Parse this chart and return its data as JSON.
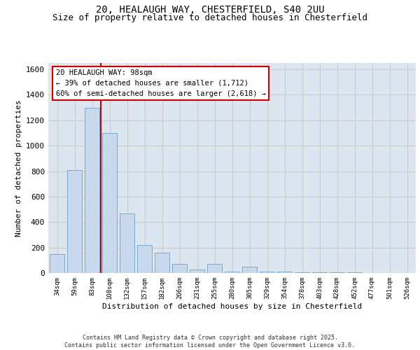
{
  "title_line1": "20, HEALAUGH WAY, CHESTERFIELD, S40 2UU",
  "title_line2": "Size of property relative to detached houses in Chesterfield",
  "xlabel": "Distribution of detached houses by size in Chesterfield",
  "ylabel": "Number of detached properties",
  "categories": [
    "34sqm",
    "59sqm",
    "83sqm",
    "108sqm",
    "132sqm",
    "157sqm",
    "182sqm",
    "206sqm",
    "231sqm",
    "255sqm",
    "280sqm",
    "305sqm",
    "329sqm",
    "354sqm",
    "378sqm",
    "403sqm",
    "428sqm",
    "452sqm",
    "477sqm",
    "501sqm",
    "526sqm"
  ],
  "values": [
    150,
    810,
    1300,
    1100,
    470,
    220,
    160,
    70,
    30,
    70,
    10,
    50,
    10,
    10,
    5,
    5,
    3,
    3,
    2,
    2,
    2
  ],
  "bar_color": "#c9d9ed",
  "bar_edge_color": "#7da9cc",
  "annotation_text": "20 HEALAUGH WAY: 98sqm\n← 39% of detached houses are smaller (1,712)\n60% of semi-detached houses are larger (2,618) →",
  "annotation_box_color": "#ffffff",
  "annotation_box_edge": "#cc0000",
  "red_line_color": "#cc0000",
  "ylim": [
    0,
    1650
  ],
  "yticks": [
    0,
    200,
    400,
    600,
    800,
    1000,
    1200,
    1400,
    1600
  ],
  "grid_color": "#cccccc",
  "bg_color": "#dce6f0",
  "footer_line1": "Contains HM Land Registry data © Crown copyright and database right 2025.",
  "footer_line2": "Contains public sector information licensed under the Open Government Licence v3.0.",
  "title_fontsize": 10,
  "subtitle_fontsize": 9
}
